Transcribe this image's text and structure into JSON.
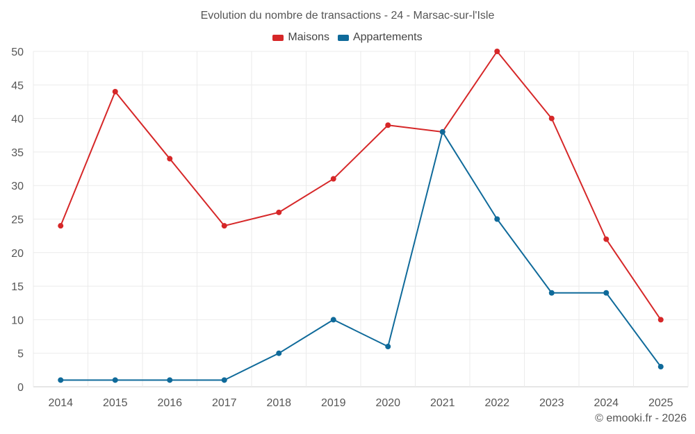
{
  "chart_data": {
    "type": "line",
    "title": "Evolution du nombre de transactions - 24 - Marsac-sur-l'Isle",
    "xlabel": "",
    "ylabel": "",
    "categories": [
      "2014",
      "2015",
      "2016",
      "2017",
      "2018",
      "2019",
      "2020",
      "2021",
      "2022",
      "2023",
      "2024",
      "2025"
    ],
    "ylim": [
      0,
      50
    ],
    "yticks": [
      0,
      5,
      10,
      15,
      20,
      25,
      30,
      35,
      40,
      45,
      50
    ],
    "grid": true,
    "legend_position": "top-center",
    "series": [
      {
        "name": "Maisons",
        "color": "#d62728",
        "values": [
          24,
          44,
          34,
          24,
          26,
          31,
          39,
          38,
          50,
          40,
          22,
          10
        ]
      },
      {
        "name": "Appartements",
        "color": "#0f6a9a",
        "values": [
          1,
          1,
          1,
          1,
          5,
          10,
          6,
          38,
          25,
          14,
          14,
          3
        ]
      }
    ]
  },
  "footer": {
    "credit": "© emooki.fr - 2026"
  }
}
